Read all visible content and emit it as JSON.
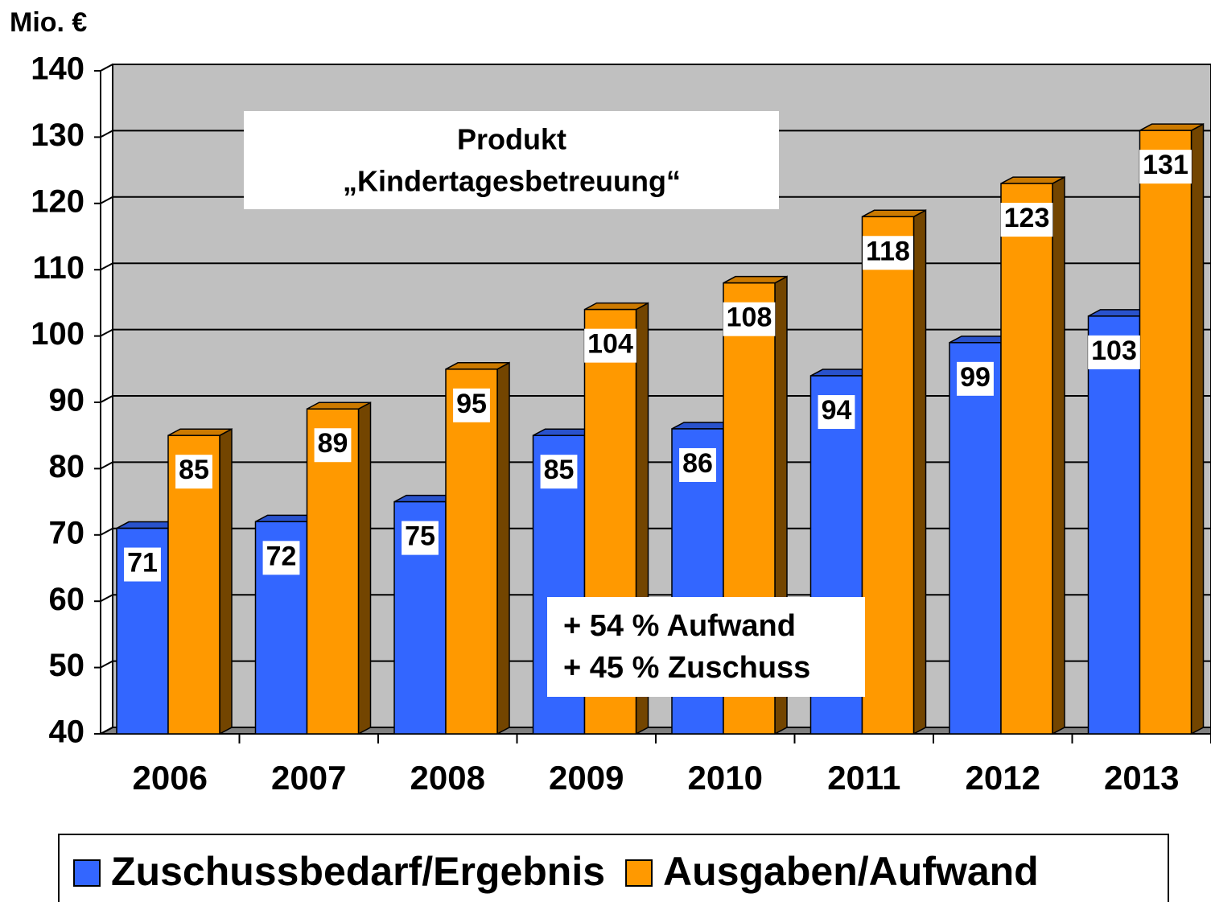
{
  "chart_data": {
    "type": "bar3d",
    "y_axis_label": "Mio. €",
    "title_lines": [
      "Produkt",
      "„Kindertagesbetreuung“"
    ],
    "annotation_lines": [
      "+ 54 % Aufwand",
      "+ 45 % Zuschuss"
    ],
    "categories": [
      "2006",
      "2007",
      "2008",
      "2009",
      "2010",
      "2011",
      "2012",
      "2013"
    ],
    "series": [
      {
        "name": "Zuschussbedarf/Ergebnis",
        "color": "#3366ff",
        "values": [
          71,
          72,
          75,
          85,
          86,
          94,
          99,
          103
        ]
      },
      {
        "name": "Ausgaben/Aufwand",
        "color": "#ff9900",
        "values": [
          85,
          89,
          95,
          104,
          108,
          118,
          123,
          131
        ]
      }
    ],
    "ylim": [
      40,
      140
    ],
    "yticks": [
      40,
      50,
      60,
      70,
      80,
      90,
      100,
      110,
      120,
      130,
      140
    ],
    "grid": true
  }
}
